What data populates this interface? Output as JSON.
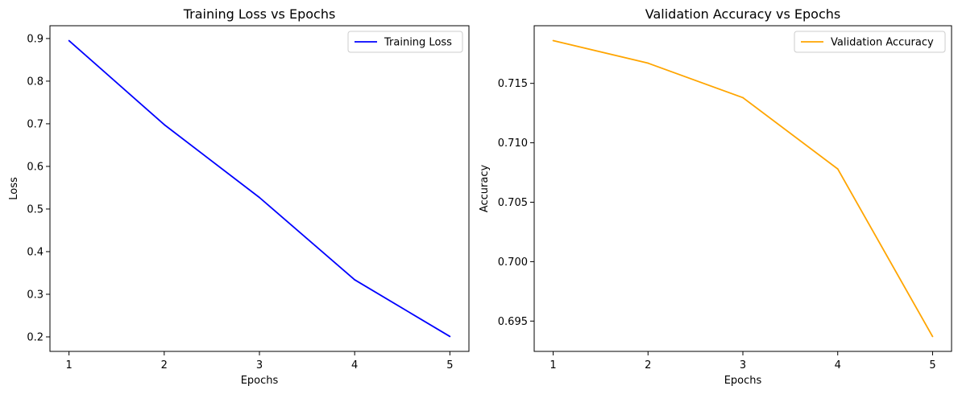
{
  "chart_data": [
    {
      "type": "line",
      "title": "Training Loss vs Epochs",
      "xlabel": "Epochs",
      "ylabel": "Loss",
      "x": [
        1,
        2,
        3,
        4,
        5
      ],
      "series": [
        {
          "name": "Training Loss",
          "color": "#0000ff",
          "values": [
            0.895,
            0.698,
            0.527,
            0.334,
            0.201
          ]
        }
      ],
      "xlim": [
        0.8,
        5.2
      ],
      "ylim": [
        0.166,
        0.93
      ],
      "xticks": [
        "1",
        "2",
        "3",
        "4",
        "5"
      ],
      "yticks": [
        "0.2",
        "0.3",
        "0.4",
        "0.5",
        "0.6",
        "0.7",
        "0.8",
        "0.9"
      ],
      "grid": false,
      "legend": "top-right"
    },
    {
      "type": "line",
      "title": "Validation Accuracy vs Epochs",
      "xlabel": "Epochs",
      "ylabel": "Accuracy",
      "x": [
        1,
        2,
        3,
        4,
        5
      ],
      "series": [
        {
          "name": "Validation Accuracy",
          "color": "#ffa500",
          "values": [
            0.7186,
            0.7167,
            0.7138,
            0.7078,
            0.6937
          ]
        }
      ],
      "xlim": [
        0.8,
        5.2
      ],
      "ylim": [
        0.69245,
        0.71985
      ],
      "xticks": [
        "1",
        "2",
        "3",
        "4",
        "5"
      ],
      "yticks": [
        "0.695",
        "0.700",
        "0.705",
        "0.710",
        "0.715"
      ],
      "grid": false,
      "legend": "top-right"
    }
  ]
}
